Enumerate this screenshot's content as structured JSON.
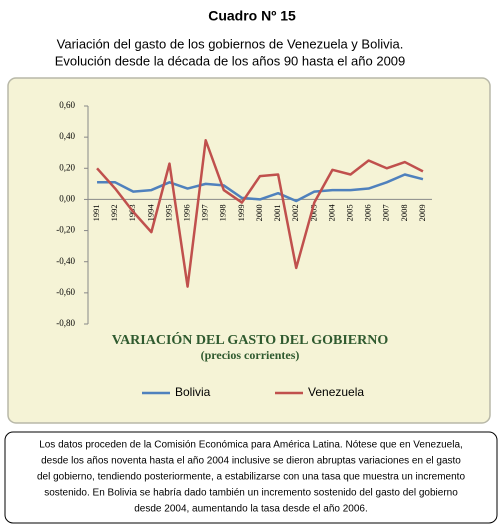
{
  "header": {
    "title": "Cuadro Nº 15",
    "subtitle": [
      "Variación del gasto de los gobiernos de Venezuela y Bolivia.",
      "Evolución desde la década de los años 90 hasta el año 2009"
    ]
  },
  "chart_data": {
    "type": "line",
    "title": "VARIACIÓN DEL GASTO DEL GOBIERNO",
    "subtitle": "(precios corrientes)",
    "categories": [
      "1991",
      "1992",
      "1993",
      "1994",
      "1995",
      "1996",
      "1997",
      "1998",
      "1999",
      "2000",
      "2001",
      "2002",
      "2003",
      "2004",
      "2005",
      "2006",
      "2007",
      "2008",
      "2009"
    ],
    "series": [
      {
        "name": "Bolivia",
        "color": "#4f81bd",
        "values": [
          0.11,
          0.11,
          0.05,
          0.06,
          0.11,
          0.07,
          0.1,
          0.09,
          0.01,
          0.0,
          0.04,
          -0.01,
          0.05,
          0.06,
          0.06,
          0.07,
          0.11,
          0.16,
          0.13
        ]
      },
      {
        "name": "Venezuela",
        "color": "#c0504d",
        "values": [
          0.2,
          0.07,
          -0.08,
          -0.21,
          0.23,
          -0.56,
          0.38,
          0.06,
          -0.02,
          0.15,
          0.16,
          -0.44,
          -0.02,
          0.19,
          0.16,
          0.25,
          0.2,
          0.24,
          0.18
        ]
      }
    ],
    "ylim": [
      -0.8,
      0.6
    ],
    "yticks": [
      {
        "value": -0.8,
        "label": "-0,80"
      },
      {
        "value": -0.6,
        "label": "-0,60"
      },
      {
        "value": -0.4,
        "label": "-0,40"
      },
      {
        "value": -0.2,
        "label": "-0,20"
      },
      {
        "value": 0,
        "label": "0,00"
      },
      {
        "value": 0.2,
        "label": "0,20"
      },
      {
        "value": 0.4,
        "label": "0,40"
      },
      {
        "value": 0.6,
        "label": "0,60"
      }
    ],
    "grid": false,
    "legend": "bottom"
  },
  "footer": {
    "lines": [
      "Los datos proceden de la Comisión Económica para América Latina. Nótese que en Venezuela,",
      "desde los años noventa hasta el año 2004 inclusive se dieron abruptas variaciones en el gasto",
      "del gobierno, tendiendo posteriormente, a estabilizarse con una tasa que muestra un incremento",
      "sostenido. En Bolivia se habría dado también un incremento sostenido del gasto del gobierno",
      "desde 2004, aumentando la tasa desde el año 2006."
    ]
  }
}
